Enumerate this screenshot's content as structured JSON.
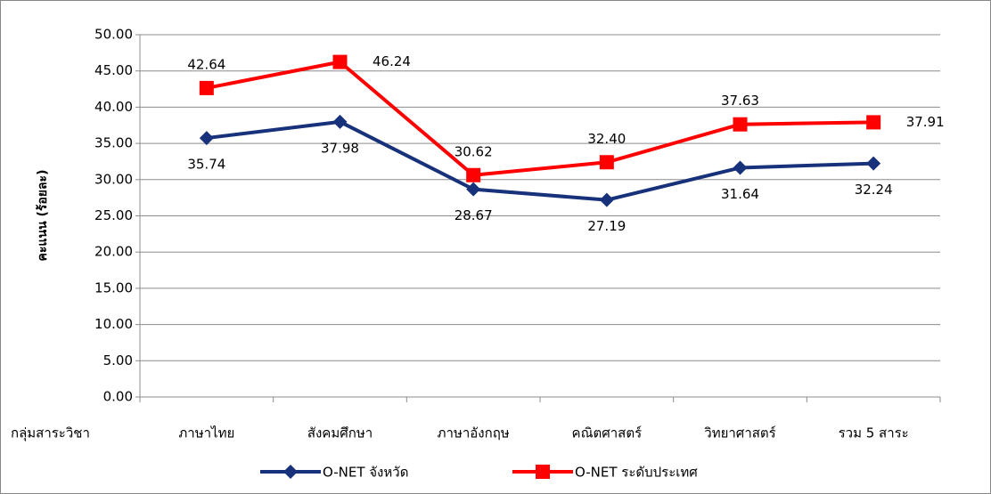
{
  "chart_data": {
    "type": "line",
    "y_label": "คะแนน (ร้อยละ)",
    "x_label": "กลุ่มสาระวิชา",
    "categories": [
      "ภาษาไทย",
      "สังคมศึกษา",
      "ภาษาอังกฤษ",
      "คณิตศาสตร์",
      "วิทยาศาสตร์",
      "รวม 5 สาระ"
    ],
    "series": [
      {
        "name": "O-NET จังหวัด",
        "color": "#17317a",
        "marker": "diamond",
        "values": [
          35.74,
          37.98,
          28.67,
          27.19,
          31.64,
          32.24
        ],
        "value_labels": [
          "35.74",
          "37.98",
          "28.67",
          "27.19",
          "31.64",
          "32.24"
        ]
      },
      {
        "name": "O-NET ระดับประเทศ",
        "color": "#ff0000",
        "marker": "square",
        "values": [
          42.64,
          46.24,
          30.62,
          32.4,
          37.63,
          37.91
        ],
        "value_labels": [
          "42.64",
          "46.24",
          "30.62",
          "32.40",
          "37.63",
          "37.91"
        ]
      }
    ],
    "ylim": [
      0,
      50
    ],
    "yticks": [
      {
        "value": 0,
        "label": "0.00"
      },
      {
        "value": 5,
        "label": "5.00"
      },
      {
        "value": 10,
        "label": "10.00"
      },
      {
        "value": 15,
        "label": "15.00"
      },
      {
        "value": 20,
        "label": "20.00"
      },
      {
        "value": 25,
        "label": "25.00"
      },
      {
        "value": 30,
        "label": "30.00"
      },
      {
        "value": 35,
        "label": "35.00"
      },
      {
        "value": 40,
        "label": "40.00"
      },
      {
        "value": 45,
        "label": "45.00"
      },
      {
        "value": 50,
        "label": "50.00"
      }
    ],
    "grid": true,
    "legend": "bottom"
  }
}
